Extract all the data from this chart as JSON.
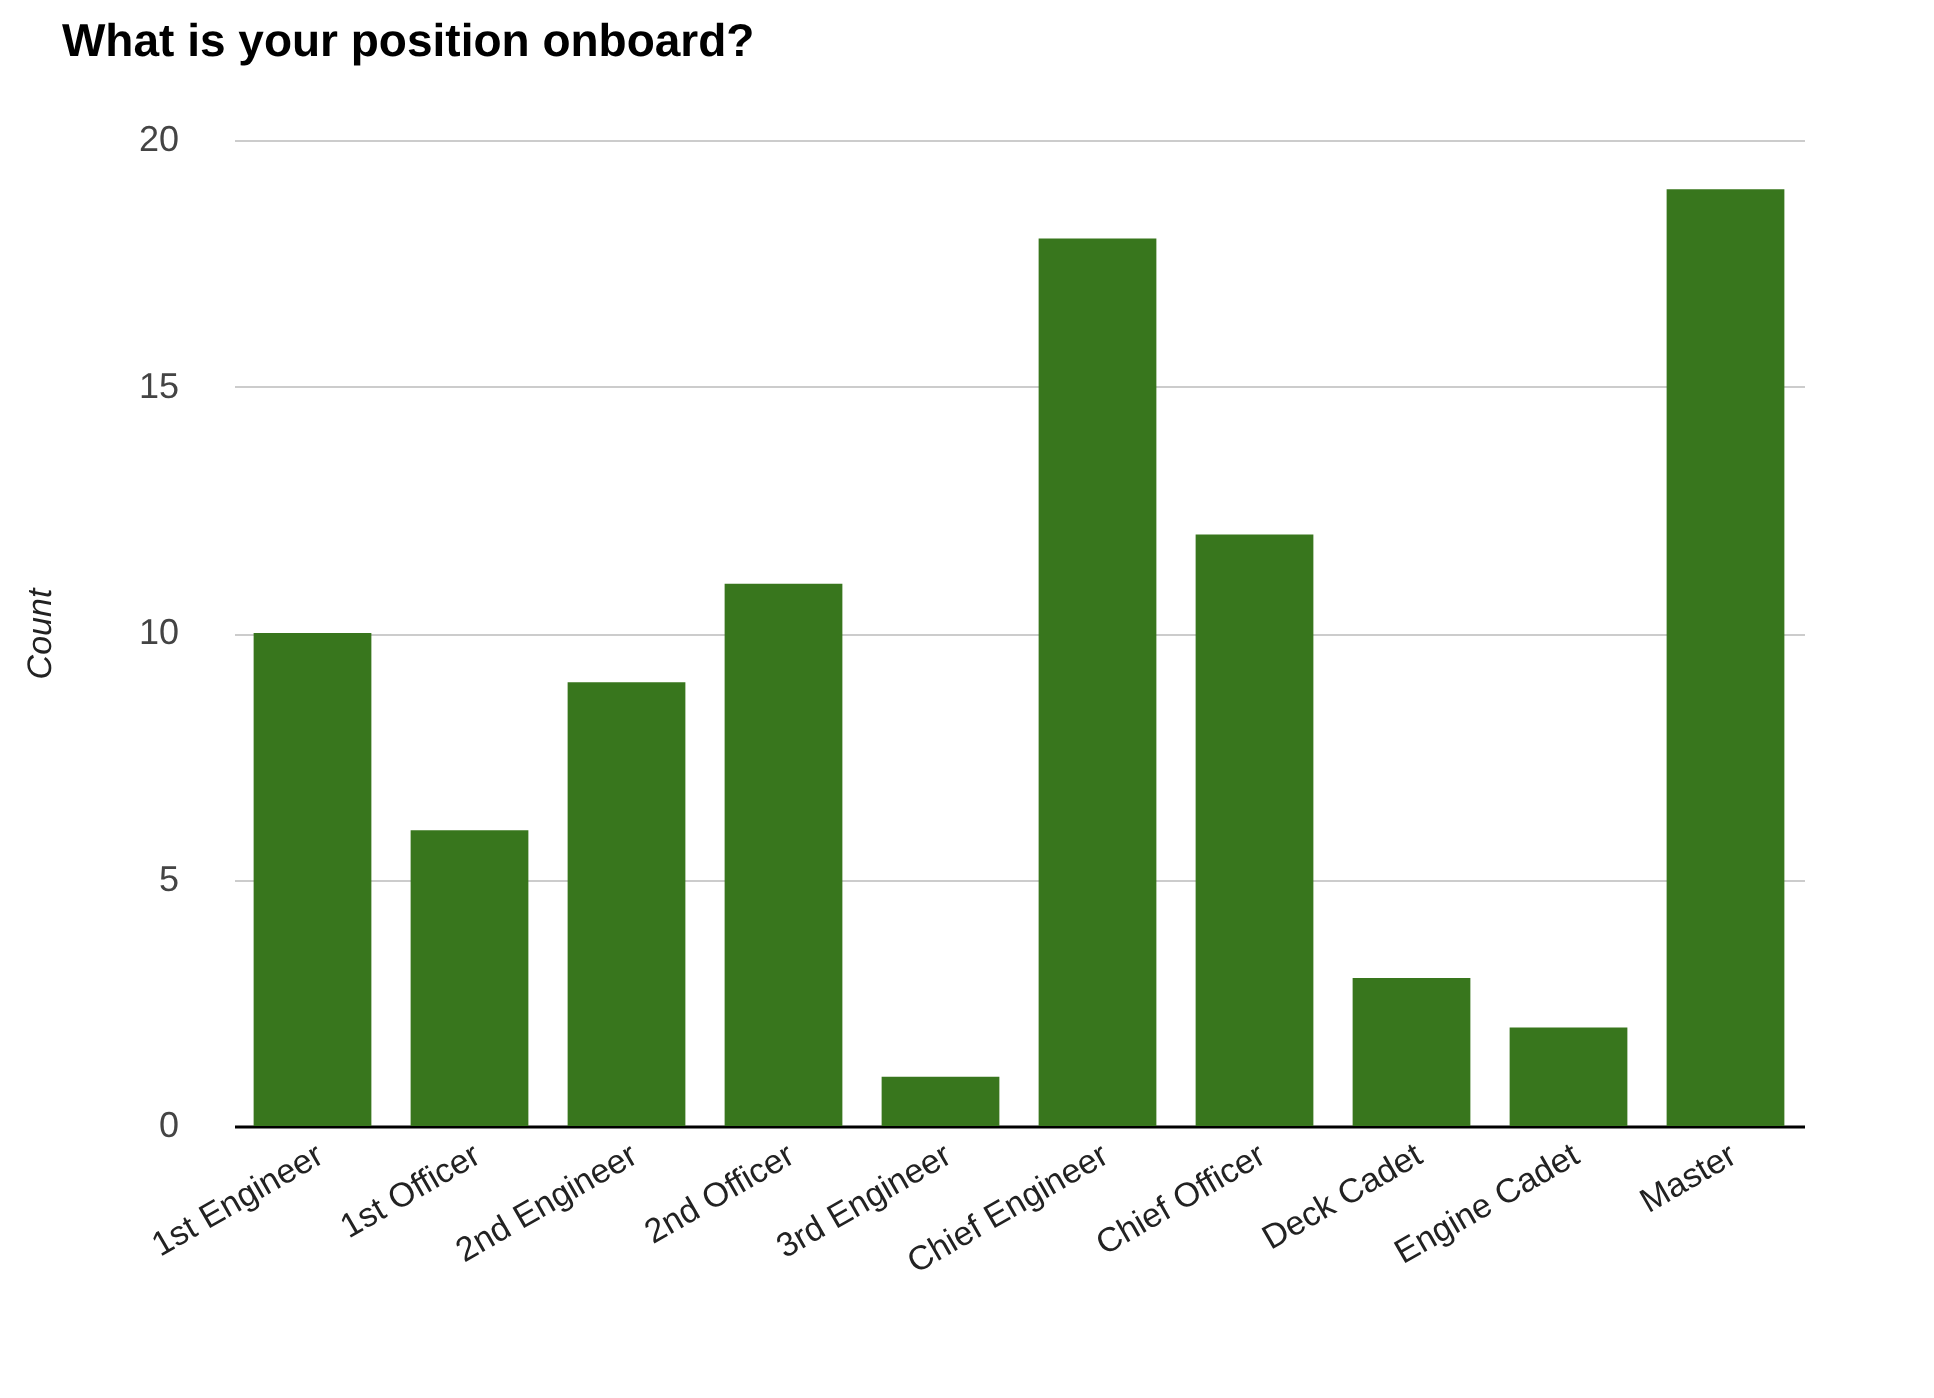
{
  "chart_data": {
    "type": "bar",
    "title": "What is your position onboard?",
    "ylabel": "Count",
    "categories": [
      "1st Engineer",
      "1st Officer",
      "2nd Engineer",
      "2nd Officer",
      "3rd Engineer",
      "Chief Engineer",
      "Chief Officer",
      "Deck Cadet",
      "Engine Cadet",
      "Master"
    ],
    "values": [
      10,
      6,
      9,
      11,
      1,
      18,
      12,
      3,
      2,
      19
    ],
    "color": "#38761d",
    "ylim": [
      0,
      20
    ],
    "yticks": [
      0,
      5,
      10,
      15,
      20
    ],
    "grid": "y"
  }
}
